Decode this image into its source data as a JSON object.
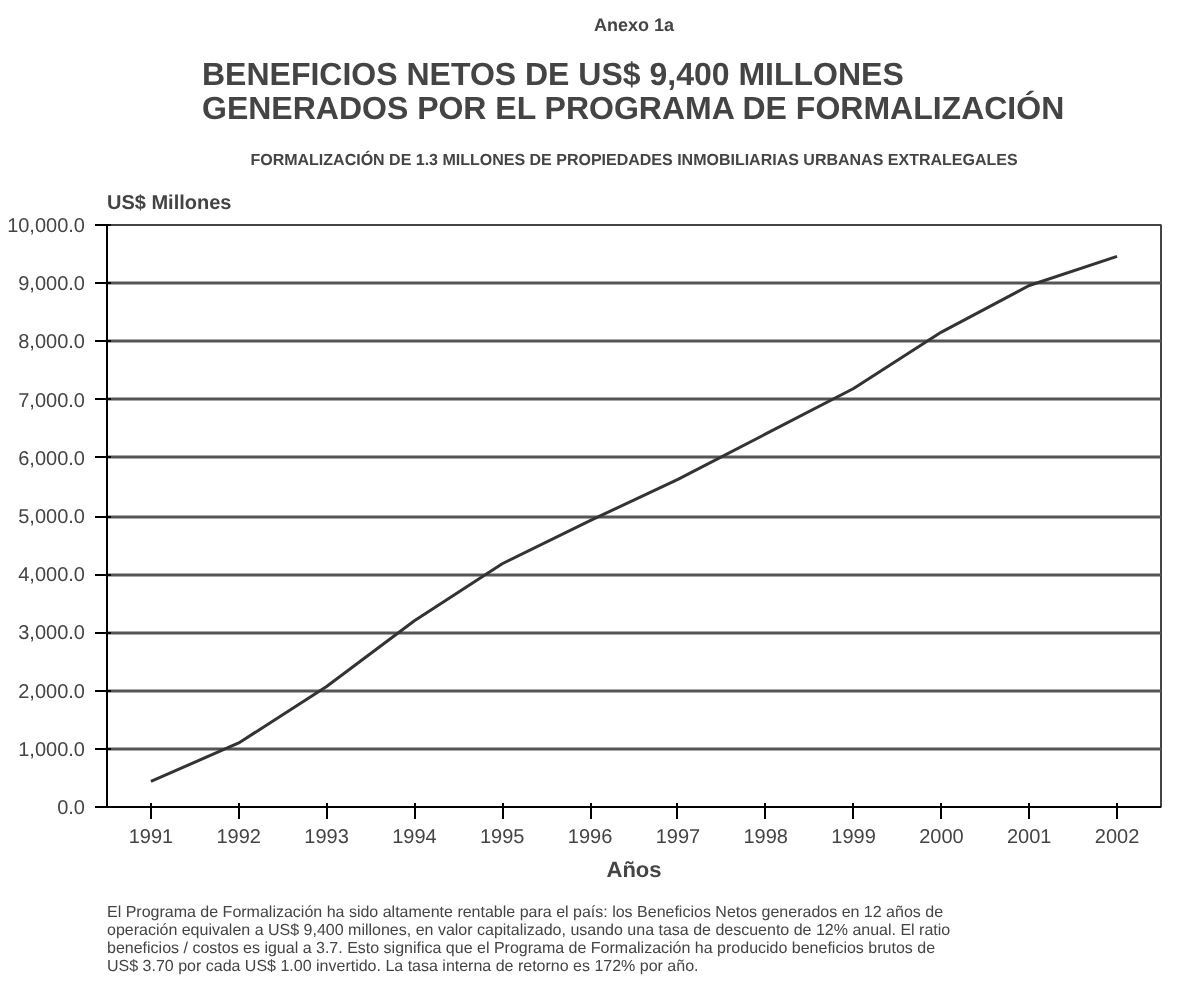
{
  "chart_data": {
    "type": "line",
    "title": "BENEFICIOS NETOS DE US$ 9,400 MILLONES GENERADOS POR EL PROGRAMA DE FORMALIZACIÓN",
    "subtitle": "FORMALIZACIÓN DE 1.3 MILLONES DE PROPIEDADES INMOBILIARIAS URBANAS EXTRALEGALES",
    "annotations": [
      "Anexo 1a",
      "El Programa de Formalización ha sido altamente rentable para el país: los Beneficios Netos generados en 12 años de operación equivalen a US$ 9,400 millones, en valor capitalizado, usando una tasa de descuento de 12% anual. El ratio beneficios / costos es igual a 3.7. Esto significa que el Programa de Formalización ha producido beneficios brutos de US$ 3.70 por cada US$ 1.00 invertido. La tasa interna de retorno es 172% por año."
    ],
    "xlabel": "Años",
    "ylabel": "US$ Millones",
    "categories": [
      "1991",
      "1992",
      "1993",
      "1994",
      "1995",
      "1996",
      "1997",
      "1998",
      "1999",
      "2000",
      "2001",
      "2002"
    ],
    "series": [
      {
        "color": "#333333",
        "values": [
          440,
          1100,
          2070,
          3200,
          4180,
          4920,
          5630,
          6410,
          7190,
          8160,
          8960,
          9460
        ]
      }
    ],
    "ylim": [
      0,
      10000
    ],
    "yticks": [
      {
        "value": 0,
        "label": "0.0"
      },
      {
        "value": 1000,
        "label": "1,000.0"
      },
      {
        "value": 2000,
        "label": "2,000.0"
      },
      {
        "value": 3000,
        "label": "3,000.0"
      },
      {
        "value": 4000,
        "label": "4,000.0"
      },
      {
        "value": 5000,
        "label": "5,000.0"
      },
      {
        "value": 6000,
        "label": "6,000.0"
      },
      {
        "value": 7000,
        "label": "7,000.0"
      },
      {
        "value": 8000,
        "label": "8,000.0"
      },
      {
        "value": 9000,
        "label": "9,000.0"
      },
      {
        "value": 10000,
        "label": "10,000.0"
      }
    ],
    "grid": "y",
    "marker": "none",
    "line_style": "solid"
  }
}
